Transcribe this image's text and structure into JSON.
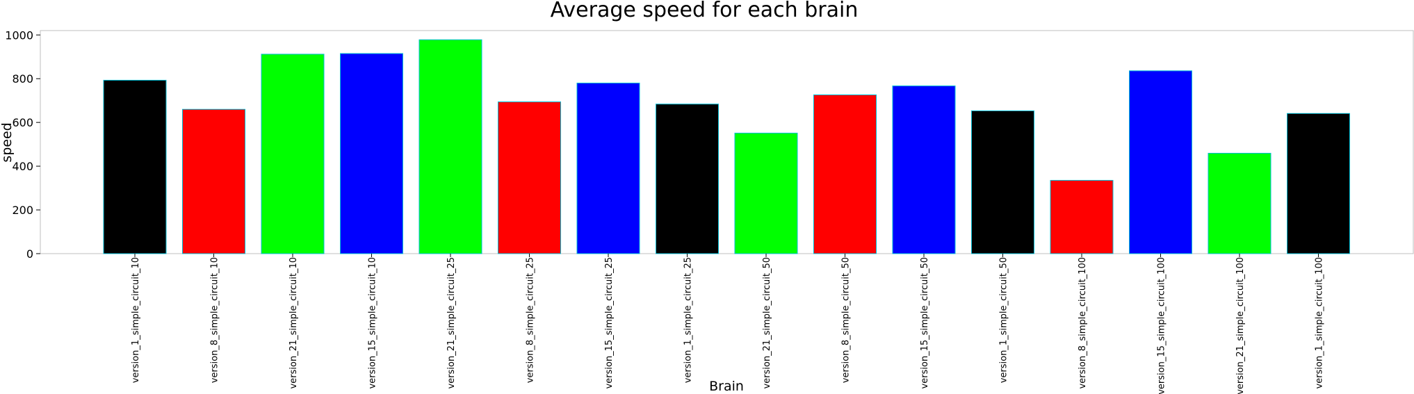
{
  "chart_data": {
    "type": "bar",
    "title": "Average speed for each brain",
    "xlabel": "Brain",
    "ylabel": "speed",
    "ylim": [
      0,
      1020
    ],
    "yticks": [
      0,
      200,
      400,
      600,
      800,
      1000
    ],
    "grid": false,
    "categories": [
      "version_1_simple_circuit_10",
      "version_8_simple_circuit_10",
      "version_21_simple_circuit_10",
      "version_15_simple_circuit_10",
      "version_21_simple_circuit_25",
      "version_8_simple_circuit_25",
      "version_15_simple_circuit_25",
      "version_1_simple_circuit_25",
      "version_21_simple_circuit_50",
      "version_8_simple_circuit_50",
      "version_15_simple_circuit_50",
      "version_1_simple_circuit_50",
      "version_8_simple_circuit_100",
      "version_15_simple_circuit_100",
      "version_21_simple_circuit_100",
      "version_1_simple_circuit_100"
    ],
    "values": [
      793,
      660,
      912,
      915,
      978,
      694,
      780,
      684,
      551,
      726,
      767,
      653,
      335,
      836,
      459,
      641
    ],
    "colors": [
      "#000000",
      "#ff0000",
      "#00ff00",
      "#0000ff",
      "#00ff00",
      "#ff0000",
      "#0000ff",
      "#000000",
      "#00ff00",
      "#ff0000",
      "#0000ff",
      "#000000",
      "#ff0000",
      "#0000ff",
      "#00ff00",
      "#000000"
    ],
    "bar_edge_color": "#00bcd4"
  }
}
